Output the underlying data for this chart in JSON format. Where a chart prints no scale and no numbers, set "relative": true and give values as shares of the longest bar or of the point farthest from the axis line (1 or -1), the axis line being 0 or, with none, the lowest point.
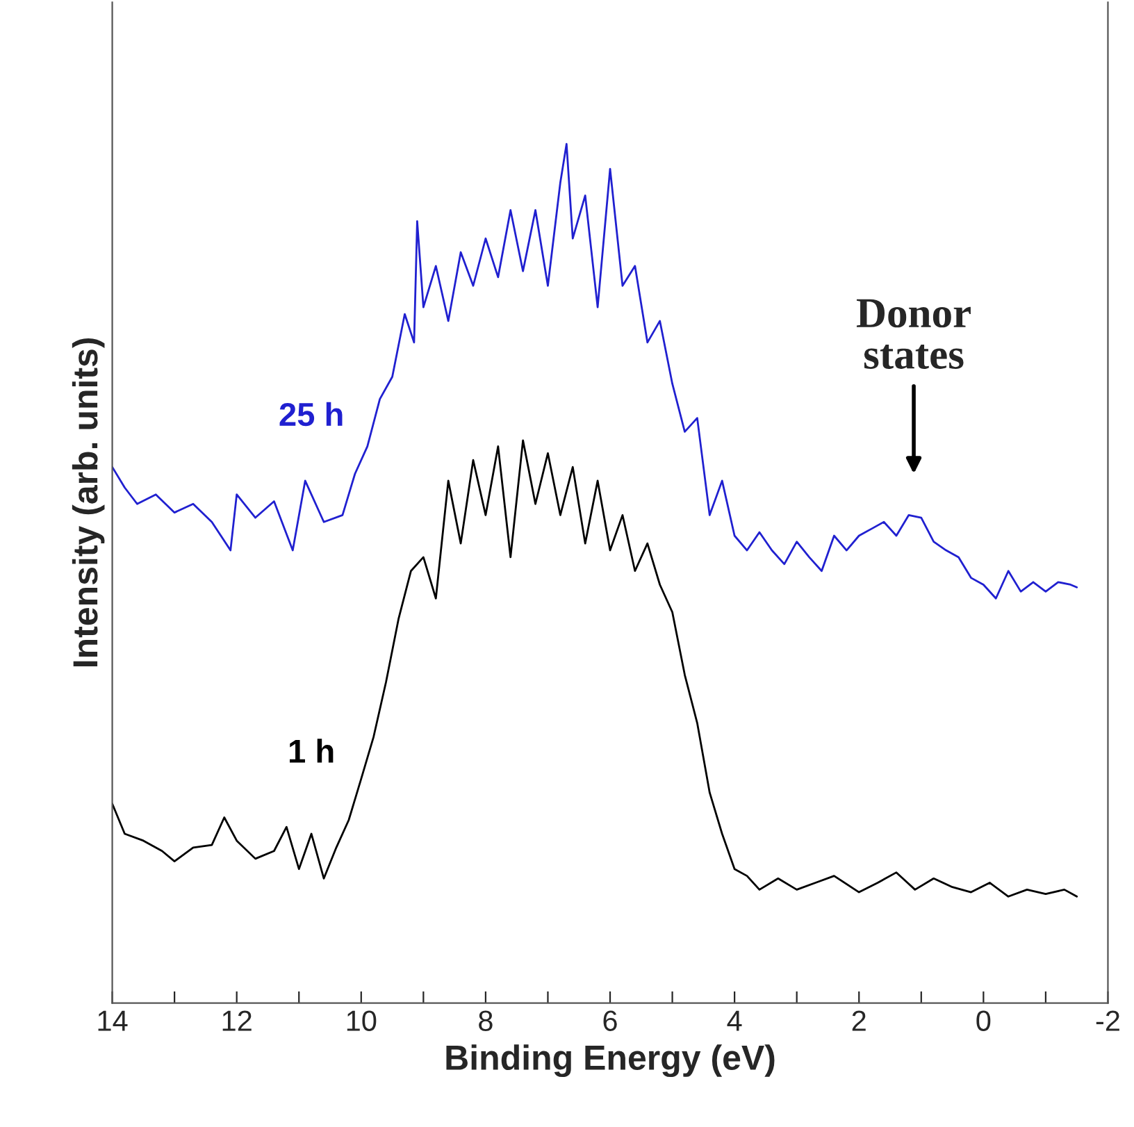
{
  "chart_data": {
    "type": "line",
    "relative": true,
    "xlabel": "Binding Energy (eV)",
    "ylabel": "Intensity (arb. units)",
    "xlim": [
      14,
      -2
    ],
    "xticks": [
      14,
      {
        "value": 13,
        "label": null
      },
      12,
      {
        "value": 11,
        "label": null
      },
      10,
      {
        "value": 9,
        "label": null
      },
      8,
      {
        "value": 7,
        "label": null
      },
      6,
      {
        "value": 5,
        "label": null
      },
      4,
      {
        "value": 3,
        "label": null
      },
      2,
      {
        "value": 1,
        "label": null
      },
      0,
      {
        "value": -1,
        "label": null
      },
      -2
    ],
    "grid": false,
    "legend": false,
    "marker": "none",
    "line_style": "solid",
    "series": [
      {
        "name": "25 h",
        "color": "#2020d0",
        "x": [
          14.0,
          13.8,
          13.6,
          13.3,
          13.0,
          12.7,
          12.4,
          12.1,
          12.0,
          11.7,
          11.4,
          11.1,
          10.9,
          10.6,
          10.3,
          10.1,
          9.9,
          9.7,
          9.5,
          9.3,
          9.15,
          9.1,
          9.0,
          8.8,
          8.6,
          8.4,
          8.2,
          8.0,
          7.8,
          7.6,
          7.4,
          7.2,
          7.0,
          6.8,
          6.7,
          6.6,
          6.4,
          6.2,
          6.0,
          5.8,
          5.6,
          5.4,
          5.2,
          5.0,
          4.8,
          4.6,
          4.4,
          4.2,
          4.0,
          3.8,
          3.6,
          3.4,
          3.2,
          3.0,
          2.8,
          2.6,
          2.4,
          2.2,
          2.0,
          1.8,
          1.6,
          1.4,
          1.2,
          1.0,
          0.8,
          0.6,
          0.4,
          0.2,
          0.0,
          -0.2,
          -0.4,
          -0.6,
          -0.8,
          -1.0,
          -1.2,
          -1.4,
          -1.5
        ],
        "values": [
          0.624,
          0.6,
          0.581,
          0.592,
          0.571,
          0.581,
          0.56,
          0.527,
          0.592,
          0.565,
          0.584,
          0.527,
          0.608,
          0.56,
          0.568,
          0.616,
          0.648,
          0.703,
          0.729,
          0.802,
          0.769,
          0.91,
          0.81,
          0.858,
          0.794,
          0.874,
          0.835,
          0.89,
          0.845,
          0.923,
          0.852,
          0.923,
          0.835,
          0.955,
          1.0,
          0.89,
          0.94,
          0.81,
          0.971,
          0.835,
          0.858,
          0.769,
          0.794,
          0.721,
          0.665,
          0.681,
          0.568,
          0.608,
          0.544,
          0.527,
          0.548,
          0.527,
          0.511,
          0.537,
          0.519,
          0.503,
          0.544,
          0.527,
          0.544,
          0.552,
          0.56,
          0.544,
          0.568,
          0.565,
          0.537,
          0.527,
          0.519,
          0.495,
          0.487,
          0.471,
          0.503,
          0.479,
          0.49,
          0.479,
          0.49,
          0.487,
          0.484
        ]
      },
      {
        "name": "1 h",
        "color": "#000000",
        "x": [
          14.0,
          13.8,
          13.5,
          13.2,
          13.0,
          12.7,
          12.4,
          12.2,
          12.0,
          11.7,
          11.4,
          11.2,
          11.0,
          10.8,
          10.6,
          10.4,
          10.2,
          10.0,
          9.8,
          9.6,
          9.4,
          9.2,
          9.0,
          8.8,
          8.6,
          8.4,
          8.2,
          8.0,
          7.8,
          7.6,
          7.4,
          7.2,
          7.0,
          6.8,
          6.6,
          6.4,
          6.2,
          6.0,
          5.8,
          5.6,
          5.4,
          5.2,
          5.0,
          4.8,
          4.6,
          4.4,
          4.2,
          4.0,
          3.8,
          3.6,
          3.3,
          3.0,
          2.7,
          2.4,
          2.0,
          1.7,
          1.4,
          1.1,
          0.8,
          0.5,
          0.2,
          -0.1,
          -0.4,
          -0.7,
          -1.0,
          -1.3,
          -1.5
        ],
        "values": [
          0.232,
          0.197,
          0.189,
          0.177,
          0.165,
          0.181,
          0.184,
          0.216,
          0.189,
          0.168,
          0.177,
          0.205,
          0.156,
          0.197,
          0.145,
          0.181,
          0.213,
          0.261,
          0.31,
          0.374,
          0.447,
          0.503,
          0.519,
          0.471,
          0.608,
          0.535,
          0.632,
          0.568,
          0.648,
          0.519,
          0.655,
          0.581,
          0.64,
          0.568,
          0.624,
          0.535,
          0.608,
          0.527,
          0.568,
          0.503,
          0.535,
          0.487,
          0.455,
          0.382,
          0.326,
          0.245,
          0.197,
          0.156,
          0.148,
          0.132,
          0.145,
          0.132,
          0.14,
          0.148,
          0.129,
          0.14,
          0.152,
          0.132,
          0.145,
          0.135,
          0.129,
          0.14,
          0.124,
          0.132,
          0.127,
          0.132,
          0.124
        ]
      }
    ],
    "annotations": [
      "Donor\nstates"
    ]
  }
}
